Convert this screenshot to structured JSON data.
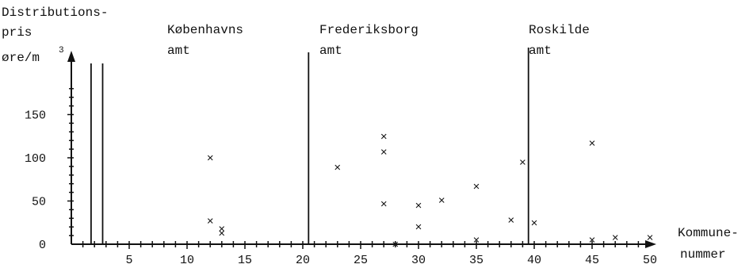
{
  "chart_data": {
    "type": "scatter",
    "title": "",
    "ylabel_lines": [
      "Distributions-",
      "pris"
    ],
    "yunit": "øre/m",
    "yunit_sup": "3",
    "xlabel_lines": [
      "Kommune-",
      "nummer"
    ],
    "xlim": [
      0,
      52
    ],
    "ylim": [
      0,
      190
    ],
    "xticks": [
      5,
      10,
      15,
      20,
      25,
      30,
      35,
      40,
      45,
      50
    ],
    "yticks": [
      0,
      50,
      100,
      150
    ],
    "grid": false,
    "marker": "×",
    "regions": [
      {
        "lines": [
          "Københavns",
          "amt"
        ],
        "label_x": 8.5
      },
      {
        "lines": [
          "Frederiksborg",
          "amt"
        ],
        "label_x": 22.5
      },
      {
        "lines": [
          "Roskilde",
          "amt"
        ],
        "label_x": 40.0
      }
    ],
    "dividers": [
      1.5,
      2.5,
      20.5,
      39.5
    ],
    "points": [
      {
        "x": 12,
        "y": 100
      },
      {
        "x": 12,
        "y": 27
      },
      {
        "x": 13,
        "y": 18
      },
      {
        "x": 13,
        "y": 13
      },
      {
        "x": 23,
        "y": 89
      },
      {
        "x": 27,
        "y": 125
      },
      {
        "x": 27,
        "y": 107
      },
      {
        "x": 27,
        "y": 47
      },
      {
        "x": 28,
        "y": 0
      },
      {
        "x": 30,
        "y": 45
      },
      {
        "x": 30,
        "y": 20
      },
      {
        "x": 32,
        "y": 51
      },
      {
        "x": 35,
        "y": 67
      },
      {
        "x": 35,
        "y": 5
      },
      {
        "x": 38,
        "y": 28
      },
      {
        "x": 39,
        "y": 95
      },
      {
        "x": 40,
        "y": 25
      },
      {
        "x": 45,
        "y": 117
      },
      {
        "x": 45,
        "y": 5
      },
      {
        "x": 47,
        "y": 8
      },
      {
        "x": 50,
        "y": 8
      }
    ]
  }
}
